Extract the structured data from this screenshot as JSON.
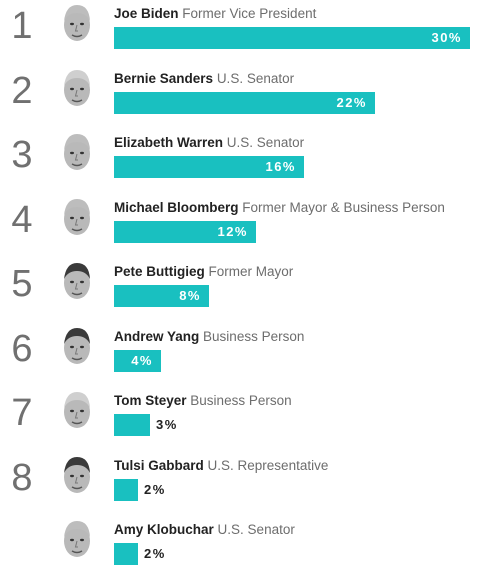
{
  "chart_data": {
    "type": "bar",
    "orientation": "horizontal",
    "bar_color": "#19c0c0",
    "value_suffix": "%",
    "series": [
      {
        "rank": "1",
        "name": "Joe Biden",
        "role": "Former Vice President",
        "value": 30,
        "label": "30%"
      },
      {
        "rank": "2",
        "name": "Bernie Sanders",
        "role": "U.S. Senator",
        "value": 22,
        "label": "22%"
      },
      {
        "rank": "3",
        "name": "Elizabeth Warren",
        "role": "U.S. Senator",
        "value": 16,
        "label": "16%"
      },
      {
        "rank": "4",
        "name": "Michael Bloomberg",
        "role": "Former Mayor & Business Person",
        "value": 12,
        "label": "12%"
      },
      {
        "rank": "5",
        "name": "Pete Buttigieg",
        "role": "Former Mayor",
        "value": 8,
        "label": "8%"
      },
      {
        "rank": "6",
        "name": "Andrew Yang",
        "role": "Business Person",
        "value": 4,
        "label": "4%"
      },
      {
        "rank": "7",
        "name": "Tom Steyer",
        "role": "Business Person",
        "value": 3,
        "label": "3%"
      },
      {
        "rank": "8",
        "name": "Tulsi Gabbard",
        "role": "U.S. Representative",
        "value": 2,
        "label": "2%"
      },
      {
        "rank": "",
        "name": "Amy Klobuchar",
        "role": "U.S. Senator",
        "value": 2,
        "label": "2%"
      }
    ]
  }
}
